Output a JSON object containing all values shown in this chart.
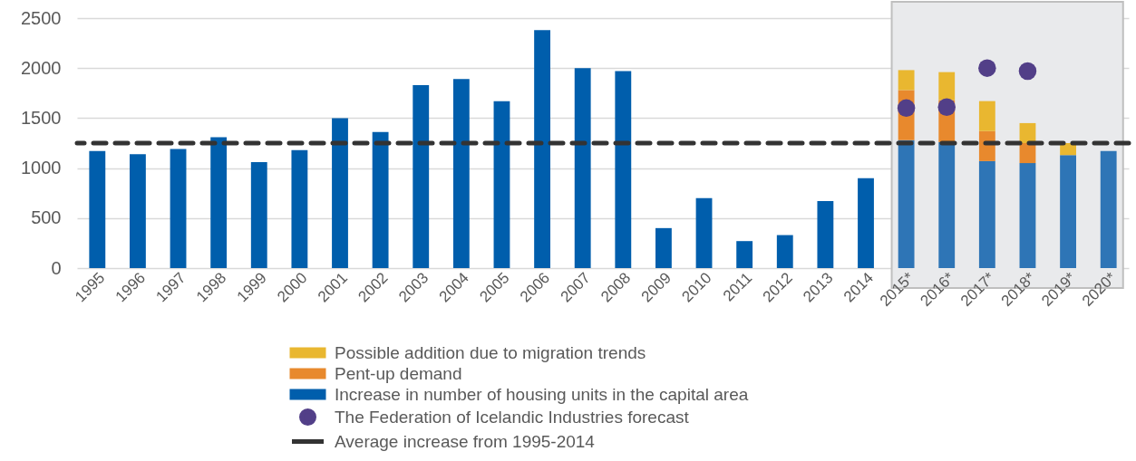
{
  "chart_data": {
    "type": "bar",
    "stacked": true,
    "categories": [
      "1995",
      "1996",
      "1997",
      "1998",
      "1999",
      "2000",
      "2001",
      "2002",
      "2003",
      "2004",
      "2005",
      "2006",
      "2007",
      "2008",
      "2009",
      "2010",
      "2011",
      "2012",
      "2013",
      "2014",
      "2015*",
      "2016*",
      "2017*",
      "2018*",
      "2019*",
      "2020*"
    ],
    "series": [
      {
        "name": "Increase in number of housing units in the capital area",
        "color": "#005eac",
        "colors": [
          "#005eac",
          "#005eac",
          "#005eac",
          "#005eac",
          "#005eac",
          "#005eac",
          "#005eac",
          "#005eac",
          "#005eac",
          "#005eac",
          "#005eac",
          "#005eac",
          "#005eac",
          "#005eac",
          "#005eac",
          "#005eac",
          "#005eac",
          "#005eac",
          "#005eac",
          "#005eac",
          "#2e75b6",
          "#2e75b6",
          "#2e75b6",
          "#2e75b6",
          "#2e75b6",
          "#2e75b6"
        ],
        "values": [
          1170,
          1140,
          1190,
          1310,
          1060,
          1180,
          1500,
          1360,
          1830,
          1890,
          1670,
          2380,
          2000,
          1970,
          400,
          700,
          270,
          330,
          670,
          900,
          1280,
          1260,
          1070,
          1050,
          1130,
          1170
        ]
      },
      {
        "name": "Pent-up demand",
        "color": "#e8892d",
        "values": [
          null,
          null,
          null,
          null,
          null,
          null,
          null,
          null,
          null,
          null,
          null,
          null,
          null,
          null,
          null,
          null,
          null,
          null,
          null,
          null,
          500,
          420,
          300,
          200,
          null,
          null
        ]
      },
      {
        "name": "Possible addition due to migration trends",
        "color": "#e9b730",
        "values": [
          null,
          null,
          null,
          null,
          null,
          null,
          null,
          null,
          null,
          null,
          null,
          null,
          null,
          null,
          null,
          null,
          null,
          null,
          null,
          null,
          200,
          280,
          300,
          200,
          120,
          null
        ]
      },
      {
        "name": "The Federation of Icelandic Industries forecast",
        "type": "scatter",
        "color": "#523f88",
        "x": [
          "2015*",
          "2016*",
          "2017*",
          "2018*"
        ],
        "values": [
          1600,
          1610,
          2000,
          1970
        ]
      }
    ],
    "ref_lines": [
      {
        "axis": "y",
        "value": 1250,
        "label": "Average increase from 1995-2014",
        "color": "#333333",
        "line_style": "dashed"
      }
    ],
    "bands": [
      {
        "axis": "x",
        "from": "2015*",
        "to": "2020*",
        "color": "#e9eaec"
      }
    ],
    "ylim": [
      0,
      2500
    ],
    "yticks": [
      0,
      500,
      1000,
      1500,
      2000,
      2500
    ],
    "grid": "y",
    "legend": "bottom",
    "marker": "circle"
  }
}
